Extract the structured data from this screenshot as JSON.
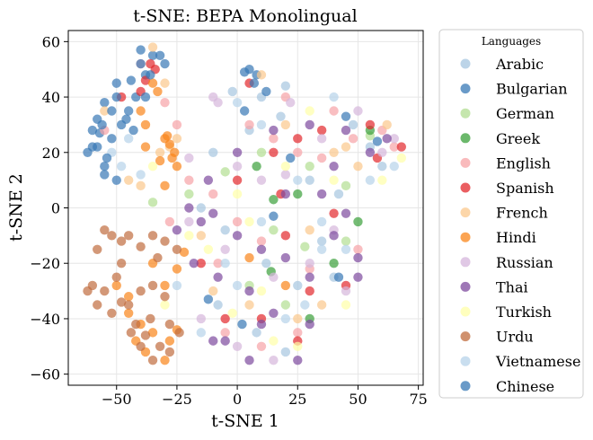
{
  "chart_data": {
    "type": "scatter",
    "title": "t-SNE: BEPA Monolingual",
    "xlabel": "t-SNE 1",
    "ylabel": "t-SNE 2",
    "xlim": [
      -70,
      77
    ],
    "ylim": [
      -64,
      64
    ],
    "xticks": [
      -50,
      -25,
      0,
      25,
      50,
      75
    ],
    "yticks": [
      -60,
      -40,
      -20,
      0,
      20,
      40,
      60
    ],
    "xtick_labels": [
      "−50",
      "−25",
      "0",
      "25",
      "50",
      "75"
    ],
    "ytick_labels": [
      "−60",
      "−40",
      "−20",
      "0",
      "20",
      "40",
      "60"
    ],
    "grid": true,
    "legend": {
      "title": "Languages",
      "placement": "outside-right"
    },
    "point_alpha": 0.7,
    "series": [
      {
        "name": "Arabic",
        "color": "#a6c6e0",
        "points": [
          [
            10,
            40
          ],
          [
            18,
            33
          ],
          [
            20,
            44
          ],
          [
            -2,
            42
          ],
          [
            5,
            28
          ],
          [
            -10,
            20
          ],
          [
            30,
            10
          ],
          [
            42,
            5
          ],
          [
            -15,
            0
          ],
          [
            -5,
            -8
          ],
          [
            12,
            -20
          ],
          [
            25,
            -28
          ],
          [
            40,
            -25
          ],
          [
            -8,
            -35
          ],
          [
            8,
            -45
          ],
          [
            20,
            -52
          ],
          [
            55,
            22
          ],
          [
            48,
            30
          ],
          [
            60,
            15
          ],
          [
            35,
            -12
          ]
        ]
      },
      {
        "name": "Bulgarian",
        "color": "#3778b5",
        "points": [
          [
            -40,
            57
          ],
          [
            -35,
            55
          ],
          [
            -30,
            52
          ],
          [
            -50,
            45
          ],
          [
            -55,
            38
          ],
          [
            -58,
            32
          ],
          [
            -48,
            30
          ],
          [
            -52,
            25
          ],
          [
            -60,
            22
          ],
          [
            -55,
            15
          ],
          [
            -62,
            20
          ],
          [
            -45,
            35
          ],
          [
            5,
            50
          ],
          [
            8,
            48
          ],
          [
            -38,
            48
          ],
          [
            -57,
            27
          ],
          [
            -42,
            40
          ],
          [
            3,
            35
          ],
          [
            15,
            -3
          ],
          [
            -12,
            -33
          ],
          [
            45,
            33
          ],
          [
            58,
            24
          ]
        ]
      },
      {
        "name": "German",
        "color": "#b2de92",
        "points": [
          [
            10,
            20
          ],
          [
            30,
            15
          ],
          [
            45,
            8
          ],
          [
            -20,
            5
          ],
          [
            -35,
            2
          ],
          [
            15,
            -8
          ],
          [
            28,
            -14
          ],
          [
            45,
            -12
          ],
          [
            5,
            -28
          ],
          [
            20,
            -35
          ],
          [
            55,
            26
          ],
          [
            -5,
            13
          ]
        ]
      },
      {
        "name": "Greek",
        "color": "#3aa03a",
        "points": [
          [
            8,
            15
          ],
          [
            25,
            5
          ],
          [
            15,
            3
          ],
          [
            40,
            -20
          ],
          [
            50,
            -5
          ],
          [
            30,
            -40
          ],
          [
            55,
            28
          ],
          [
            14,
            -23
          ]
        ]
      },
      {
        "name": "English",
        "color": "#f7a3a6",
        "points": [
          [
            -55,
            28
          ],
          [
            -40,
            52
          ],
          [
            -30,
            38
          ],
          [
            5,
            30
          ],
          [
            15,
            25
          ],
          [
            25,
            20
          ],
          [
            35,
            18
          ],
          [
            48,
            25
          ],
          [
            60,
            28
          ],
          [
            -10,
            5
          ],
          [
            0,
            -5
          ],
          [
            10,
            -12
          ],
          [
            30,
            -22
          ],
          [
            50,
            -15
          ],
          [
            -5,
            -45
          ],
          [
            10,
            -50
          ],
          [
            25,
            -45
          ],
          [
            -20,
            10
          ],
          [
            -28,
            -5
          ],
          [
            40,
            35
          ],
          [
            20,
            40
          ],
          [
            -8,
            -20
          ],
          [
            65,
            22
          ],
          [
            -25,
            30
          ]
        ]
      },
      {
        "name": "Spanish",
        "color": "#e3282c",
        "points": [
          [
            -38,
            46
          ],
          [
            -36,
            52
          ],
          [
            -34,
            50
          ],
          [
            -48,
            40
          ],
          [
            5,
            45
          ],
          [
            15,
            20
          ],
          [
            25,
            25
          ],
          [
            35,
            28
          ],
          [
            55,
            30
          ],
          [
            68,
            22
          ],
          [
            20,
            -10
          ],
          [
            30,
            -30
          ],
          [
            -5,
            -40
          ],
          [
            10,
            -40
          ],
          [
            25,
            -48
          ],
          [
            0,
            10
          ],
          [
            -15,
            -20
          ],
          [
            40,
            -2
          ],
          [
            45,
            -28
          ],
          [
            -40,
            42
          ],
          [
            18,
            5
          ],
          [
            58,
            18
          ]
        ]
      },
      {
        "name": "French",
        "color": "#fbc88c",
        "points": [
          [
            -35,
            58
          ],
          [
            -30,
            45
          ],
          [
            -25,
            25
          ],
          [
            -28,
            22
          ],
          [
            -45,
            10
          ],
          [
            -40,
            8
          ],
          [
            -55,
            35
          ],
          [
            10,
            48
          ],
          [
            20,
            30
          ],
          [
            40,
            20
          ],
          [
            50,
            15
          ],
          [
            -15,
            -10
          ],
          [
            -10,
            -30
          ],
          [
            5,
            -35
          ],
          [
            25,
            -40
          ],
          [
            35,
            -35
          ],
          [
            45,
            22
          ],
          [
            -32,
            20
          ],
          [
            62,
            30
          ],
          [
            30,
            -8
          ]
        ]
      },
      {
        "name": "Hindi",
        "color": "#f9851a",
        "points": [
          [
            -30,
            25
          ],
          [
            -28,
            23
          ],
          [
            -26,
            20
          ],
          [
            -32,
            17
          ],
          [
            -27,
            18
          ],
          [
            -40,
            35
          ],
          [
            -38,
            30
          ],
          [
            -30,
            8
          ],
          [
            -25,
            15
          ],
          [
            -35,
            45
          ],
          [
            -33,
            42
          ],
          [
            -45,
            -38
          ],
          [
            -40,
            -42
          ],
          [
            -35,
            -45
          ],
          [
            -30,
            -55
          ],
          [
            -38,
            -52
          ],
          [
            -42,
            -48
          ],
          [
            -28,
            -48
          ],
          [
            -25,
            -44
          ],
          [
            -50,
            -28
          ],
          [
            -45,
            -32
          ],
          [
            -35,
            -20
          ],
          [
            -30,
            -28
          ],
          [
            -25,
            -22
          ],
          [
            5,
            -18
          ],
          [
            20,
            -28
          ],
          [
            -38,
            22
          ],
          [
            -29,
            26
          ],
          [
            -22,
            -16
          ]
        ]
      },
      {
        "name": "Russian",
        "color": "#d6b6dc",
        "points": [
          [
            -10,
            40
          ],
          [
            -8,
            38
          ],
          [
            0,
            15
          ],
          [
            10,
            10
          ],
          [
            20,
            12
          ],
          [
            35,
            25
          ],
          [
            50,
            35
          ],
          [
            60,
            20
          ],
          [
            -20,
            -5
          ],
          [
            -5,
            -15
          ],
          [
            15,
            -25
          ],
          [
            30,
            -20
          ],
          [
            45,
            -30
          ],
          [
            -15,
            -40
          ],
          [
            0,
            -50
          ],
          [
            15,
            -55
          ],
          [
            -20,
            18
          ],
          [
            22,
            38
          ],
          [
            40,
            -8
          ],
          [
            65,
            25
          ]
        ]
      },
      {
        "name": "Thai",
        "color": "#7d4a9e",
        "points": [
          [
            -20,
            0
          ],
          [
            -15,
            -5
          ],
          [
            -10,
            -2
          ],
          [
            0,
            -10
          ],
          [
            10,
            -15
          ],
          [
            20,
            -18
          ],
          [
            30,
            -25
          ],
          [
            40,
            -10
          ],
          [
            50,
            -18
          ],
          [
            -18,
            -20
          ],
          [
            -8,
            -25
          ],
          [
            5,
            -30
          ],
          [
            15,
            -38
          ],
          [
            -5,
            -48
          ],
          [
            10,
            -42
          ],
          [
            30,
            -42
          ],
          [
            0,
            20
          ],
          [
            15,
            28
          ],
          [
            30,
            30
          ],
          [
            45,
            28
          ],
          [
            55,
            20
          ],
          [
            62,
            25
          ],
          [
            -12,
            10
          ],
          [
            20,
            5
          ],
          [
            35,
            5
          ],
          [
            45,
            -2
          ],
          [
            -10,
            -48
          ],
          [
            5,
            -55
          ],
          [
            40,
            15
          ],
          [
            -25,
            -8
          ],
          [
            25,
            -55
          ],
          [
            50,
            -25
          ]
        ]
      },
      {
        "name": "Turkish",
        "color": "#ffffa8",
        "points": [
          [
            -35,
            15
          ],
          [
            -20,
            -10
          ],
          [
            0,
            5
          ],
          [
            5,
            -5
          ],
          [
            20,
            15
          ],
          [
            40,
            10
          ],
          [
            60,
            10
          ],
          [
            -12,
            -15
          ],
          [
            10,
            -30
          ],
          [
            25,
            -50
          ],
          [
            45,
            -35
          ],
          [
            30,
            35
          ],
          [
            -30,
            -35
          ],
          [
            15,
            -48
          ],
          [
            68,
            18
          ],
          [
            -2,
            -38
          ]
        ]
      },
      {
        "name": "Urdu",
        "color": "#c06c3e",
        "points": [
          [
            -60,
            -28
          ],
          [
            -55,
            -30
          ],
          [
            -50,
            -25
          ],
          [
            -48,
            -20
          ],
          [
            -58,
            -35
          ],
          [
            -52,
            -38
          ],
          [
            -45,
            -35
          ],
          [
            -40,
            -30
          ],
          [
            -35,
            -28
          ],
          [
            -30,
            -32
          ],
          [
            -55,
            -8
          ],
          [
            -52,
            -10
          ],
          [
            -48,
            -12
          ],
          [
            -45,
            -10
          ],
          [
            -40,
            -14
          ],
          [
            -35,
            -10
          ],
          [
            -30,
            -12
          ],
          [
            -25,
            -15
          ],
          [
            -42,
            -42
          ],
          [
            -38,
            -46
          ],
          [
            -32,
            -50
          ],
          [
            -28,
            -52
          ],
          [
            -24,
            -45
          ],
          [
            -35,
            -55
          ],
          [
            -40,
            -50
          ],
          [
            -44,
            -45
          ],
          [
            -62,
            -30
          ],
          [
            -48,
            -34
          ],
          [
            -33,
            -18
          ],
          [
            -58,
            -15
          ],
          [
            -28,
            -42
          ],
          [
            -36,
            -40
          ]
        ]
      },
      {
        "name": "Vietnamese",
        "color": "#b7d3e9",
        "points": [
          [
            -52,
            20
          ],
          [
            -48,
            15
          ],
          [
            -45,
            25
          ],
          [
            -40,
            12
          ],
          [
            0,
            38
          ],
          [
            10,
            30
          ],
          [
            25,
            10
          ],
          [
            35,
            -5
          ],
          [
            45,
            -15
          ],
          [
            -5,
            -20
          ],
          [
            10,
            -5
          ],
          [
            20,
            -40
          ],
          [
            35,
            -15
          ],
          [
            55,
            10
          ],
          [
            65,
            15
          ],
          [
            -15,
            -45
          ],
          [
            0,
            -28
          ],
          [
            40,
            40
          ],
          [
            -25,
            -28
          ],
          [
            28,
            -35
          ]
        ]
      },
      {
        "name": "Chinese",
        "color": "#3778b5",
        "points": [
          [
            -40,
            52
          ],
          [
            -36,
            48
          ],
          [
            -32,
            55
          ],
          [
            -50,
            40
          ],
          [
            -56,
            30
          ],
          [
            -52,
            35
          ],
          [
            -60,
            28
          ],
          [
            -58,
            22
          ],
          [
            -54,
            18
          ],
          [
            -46,
            32
          ],
          [
            -43,
            28
          ],
          [
            -50,
            10
          ],
          [
            -55,
            12
          ],
          [
            3,
            49
          ],
          [
            7,
            45
          ],
          [
            12,
            42
          ],
          [
            -44,
            46
          ],
          [
            -38,
            40
          ],
          [
            22,
            18
          ],
          [
            42,
            -25
          ],
          [
            2,
            -42
          ]
        ]
      }
    ]
  }
}
